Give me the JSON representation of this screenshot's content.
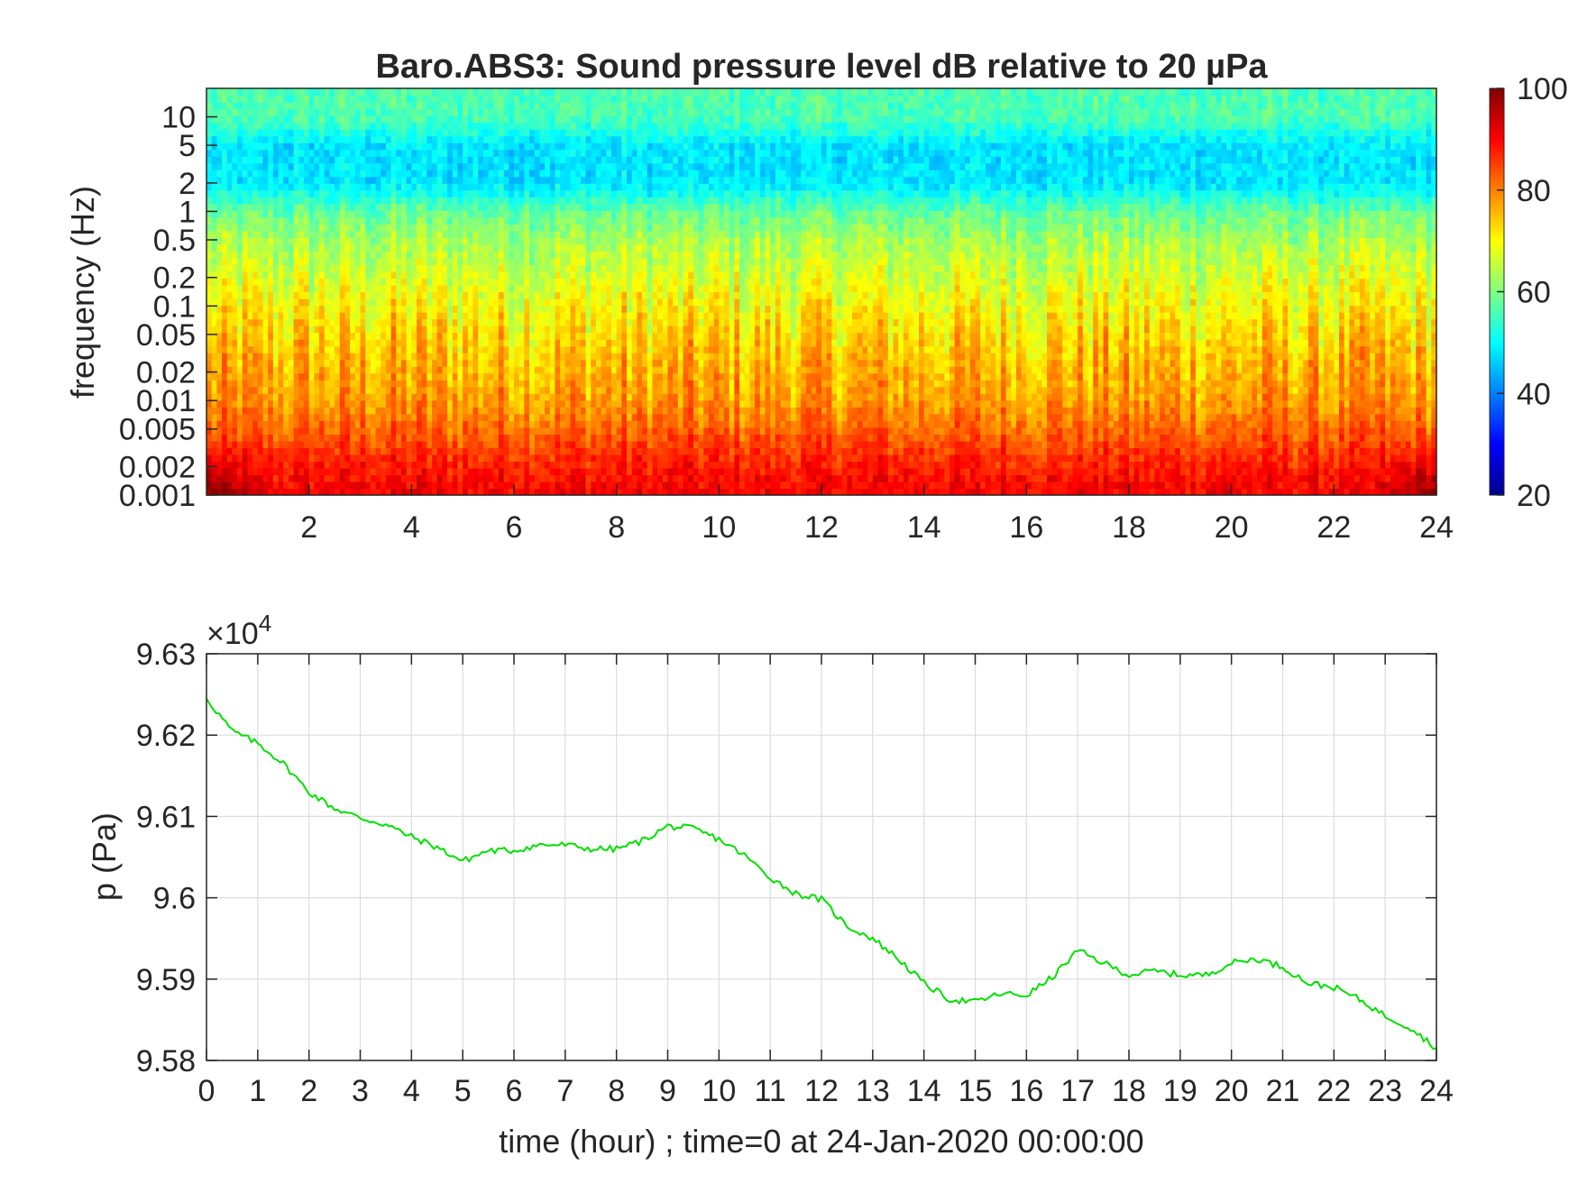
{
  "chart_data": [
    {
      "type": "heatmap",
      "title": "Baro.ABS3: Sound pressure level dB relative to 20 µPa",
      "ylabel": "frequency (Hz)",
      "xlabel": "",
      "y_scale": "log",
      "xlim": [
        0,
        24
      ],
      "ylim": [
        0.001,
        20
      ],
      "x_ticks": [
        "2",
        "4",
        "6",
        "8",
        "10",
        "12",
        "14",
        "16",
        "18",
        "20",
        "22",
        "24"
      ],
      "y_ticks": [
        "0.001",
        "0.002",
        "0.005",
        "0.01",
        "0.02",
        "0.05",
        "0.1",
        "0.2",
        "0.5",
        "1",
        "2",
        "5",
        "10"
      ],
      "colorbar": {
        "colormap": "jet",
        "range": [
          20,
          100
        ],
        "ticks": [
          "20",
          "40",
          "60",
          "80",
          "100"
        ]
      },
      "level_profile": {
        "frequency_hz": [
          0.001,
          0.002,
          0.005,
          0.01,
          0.02,
          0.05,
          0.1,
          0.2,
          0.5,
          1,
          2,
          5,
          10,
          20
        ],
        "level_db": [
          91,
          88,
          82,
          78,
          76,
          73,
          70,
          67,
          63,
          58,
          48,
          48,
          56,
          56
        ]
      },
      "grid": false
    },
    {
      "type": "line",
      "title": "",
      "xlabel": "time (hour) ; time=0 at 24-Jan-2020 00:00:00",
      "ylabel": "p (Pa)",
      "y_multiplier": "×10",
      "y_multiplier_exp": "4",
      "xlim": [
        0,
        24
      ],
      "ylim": [
        9.58,
        9.63
      ],
      "x_ticks": [
        "0",
        "1",
        "2",
        "3",
        "4",
        "5",
        "6",
        "7",
        "8",
        "9",
        "10",
        "11",
        "12",
        "13",
        "14",
        "15",
        "16",
        "17",
        "18",
        "19",
        "20",
        "21",
        "22",
        "23",
        "24"
      ],
      "y_ticks": [
        "9.58",
        "9.59",
        "9.6",
        "9.61",
        "9.62",
        "9.63"
      ],
      "grid": true,
      "line_color": "#00e000",
      "x": [
        0,
        0.5,
        1,
        1.5,
        2,
        2.5,
        3,
        3.5,
        4,
        4.5,
        5,
        5.5,
        6,
        6.5,
        7,
        7.5,
        8,
        8.5,
        9,
        9.5,
        10,
        10.5,
        11,
        11.5,
        12,
        12.5,
        13,
        13.5,
        14,
        14.5,
        15,
        15.5,
        16,
        16.5,
        17,
        17.5,
        18,
        18.5,
        19,
        19.5,
        20,
        20.5,
        21,
        21.5,
        22,
        22.5,
        23,
        23.5,
        24
      ],
      "y": [
        9.6245,
        9.6205,
        9.619,
        9.6165,
        9.613,
        9.611,
        9.6098,
        9.609,
        9.6075,
        9.6062,
        9.6045,
        9.6058,
        9.6058,
        9.6065,
        9.6065,
        9.606,
        9.606,
        9.607,
        9.6088,
        9.6085,
        9.6072,
        9.6052,
        9.6025,
        9.6005,
        9.5998,
        9.5965,
        9.595,
        9.5925,
        9.5895,
        9.5875,
        9.5872,
        9.5882,
        9.588,
        9.5902,
        9.5935,
        9.592,
        9.5905,
        9.591,
        9.5905,
        9.5905,
        9.592,
        9.5925,
        9.5915,
        9.5895,
        9.589,
        9.5875,
        9.5855,
        9.584,
        9.5815
      ]
    }
  ]
}
